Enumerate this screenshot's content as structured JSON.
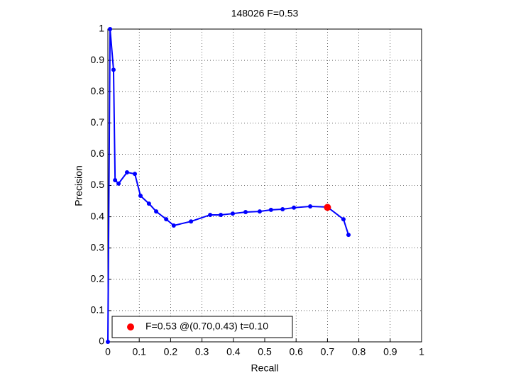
{
  "chart_data": {
    "type": "line",
    "title": "148026 F=0.53",
    "x_label": "Recall",
    "y_label": "Precision",
    "series": [
      {
        "color": "#0000ff",
        "x": [
          0,
          0.007,
          0.018,
          0.023,
          0.034,
          0.061,
          0.086,
          0.104,
          0.131,
          0.154,
          0.186,
          0.21,
          0.265,
          0.326,
          0.36,
          0.398,
          0.439,
          0.484,
          0.52,
          0.557,
          0.593,
          0.645,
          0.7,
          0.751,
          0.767
        ],
        "values": [
          0,
          1,
          0.87,
          0.517,
          0.506,
          0.542,
          0.537,
          0.467,
          0.442,
          0.417,
          0.392,
          0.372,
          0.385,
          0.406,
          0.406,
          0.41,
          0.415,
          0.417,
          0.422,
          0.424,
          0.429,
          0.433,
          0.431,
          0.392,
          0.342
        ]
      },
      {
        "name": "F=0.53 @(0.70,0.43) t=0.10",
        "color": "#ff0000",
        "x": [
          0.7
        ],
        "values": [
          0.43
        ]
      }
    ],
    "xlim": [
      0,
      1
    ],
    "ylim": [
      0,
      1
    ],
    "xticks": [
      0,
      0.1,
      0.2,
      0.3,
      0.4,
      0.5,
      0.6,
      0.7,
      0.8,
      0.9,
      1
    ],
    "yticks": [
      0,
      0.1,
      0.2,
      0.3,
      0.4,
      0.5,
      0.6,
      0.7,
      0.8,
      0.9,
      1
    ],
    "grid": true,
    "legend": "lower left"
  }
}
